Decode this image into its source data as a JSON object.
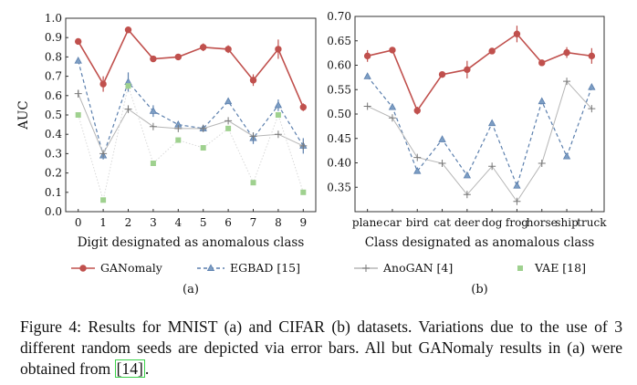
{
  "chart_data": [
    {
      "type": "line",
      "panel_label": "(a)",
      "xlabel": "Digit designated as anomalous class",
      "ylabel": "AUC",
      "categories": [
        "0",
        "1",
        "2",
        "3",
        "4",
        "5",
        "6",
        "7",
        "8",
        "9"
      ],
      "ylim": [
        0.0,
        1.0
      ],
      "yticks": [
        "0.0",
        "0.1",
        "0.2",
        "0.3",
        "0.4",
        "0.5",
        "0.6",
        "0.7",
        "0.8",
        "0.9",
        "1.0"
      ],
      "series": [
        {
          "name": "GANomaly",
          "style": "solid-circle",
          "color": "#c0504d",
          "values": [
            0.88,
            0.66,
            0.94,
            0.79,
            0.8,
            0.85,
            0.84,
            0.68,
            0.84,
            0.54
          ],
          "errors": [
            0.01,
            0.04,
            0.01,
            0.01,
            0.01,
            0.02,
            0.02,
            0.03,
            0.05,
            0.02
          ]
        },
        {
          "name": "EGBAD [15]",
          "style": "dashed-triangle",
          "color": "#5b7fad",
          "values": [
            0.78,
            0.29,
            0.67,
            0.52,
            0.45,
            0.43,
            0.57,
            0.38,
            0.55,
            0.34
          ],
          "errors": [
            0.0,
            0.02,
            0.05,
            0.03,
            0.01,
            0.01,
            0.01,
            0.03,
            0.03,
            0.04
          ]
        },
        {
          "name": "AnoGAN [4]",
          "style": "solid-plus",
          "color": "#8c8c8c",
          "values": [
            0.61,
            0.3,
            0.53,
            0.44,
            0.43,
            0.43,
            0.47,
            0.39,
            0.4,
            0.34
          ],
          "errors": [
            0.02,
            0.0,
            0.02,
            0.0,
            0.0,
            0.0,
            0.0,
            0.0,
            0.0,
            0.0
          ]
        },
        {
          "name": "VAE [18]",
          "style": "dotted-square",
          "color": "#9fd18f",
          "values": [
            0.5,
            0.06,
            0.65,
            0.25,
            0.37,
            0.33,
            0.43,
            0.15,
            0.5,
            0.1
          ],
          "errors": [
            0,
            0,
            0,
            0,
            0,
            0,
            0,
            0,
            0,
            0
          ]
        }
      ]
    },
    {
      "type": "line",
      "panel_label": "(b)",
      "xlabel": "Class designated as anomalous class",
      "ylabel": "",
      "categories": [
        "plane",
        "car",
        "bird",
        "cat",
        "deer",
        "dog",
        "frog",
        "horse",
        "ship",
        "truck"
      ],
      "ylim": [
        0.3,
        0.7
      ],
      "yticks": [
        "0.35",
        "0.40",
        "0.45",
        "0.50",
        "0.55",
        "0.60",
        "0.65",
        "0.70"
      ],
      "series": [
        {
          "name": "GANomaly",
          "style": "solid-circle",
          "color": "#c0504d",
          "values": [
            0.619,
            0.631,
            0.507,
            0.581,
            0.591,
            0.629,
            0.664,
            0.605,
            0.626,
            0.619
          ],
          "errors": [
            0.012,
            0.004,
            0.008,
            0.003,
            0.018,
            0.003,
            0.017,
            0.004,
            0.011,
            0.016
          ]
        },
        {
          "name": "EGBAD [15]",
          "style": "dashed-triangle",
          "color": "#5b7fad",
          "values": [
            0.577,
            0.514,
            0.383,
            0.448,
            0.374,
            0.481,
            0.353,
            0.526,
            0.413,
            0.555
          ],
          "errors": [
            0,
            0,
            0,
            0,
            0,
            0,
            0,
            0,
            0,
            0
          ]
        },
        {
          "name": "AnoGAN [4]",
          "style": "solid-plus",
          "color": "#8c8c8c",
          "values": [
            0.516,
            0.492,
            0.411,
            0.399,
            0.335,
            0.393,
            0.321,
            0.399,
            0.567,
            0.511
          ],
          "errors": [
            0,
            0,
            0,
            0,
            0,
            0,
            0,
            0,
            0,
            0
          ]
        }
      ]
    }
  ],
  "legend": [
    {
      "label": "GANomaly"
    },
    {
      "label": "EGBAD [15]"
    },
    {
      "label": "AnoGAN [4]"
    },
    {
      "label": "VAE [18]"
    }
  ],
  "caption": {
    "text": "Figure 4: Results for MNIST (a) and CIFAR (b) datasets. Variations due to the use of 3 different random seeds are depicted via error bars. All but GANomaly results in (a) were obtained from ",
    "ref": "[14]",
    "end": "."
  }
}
